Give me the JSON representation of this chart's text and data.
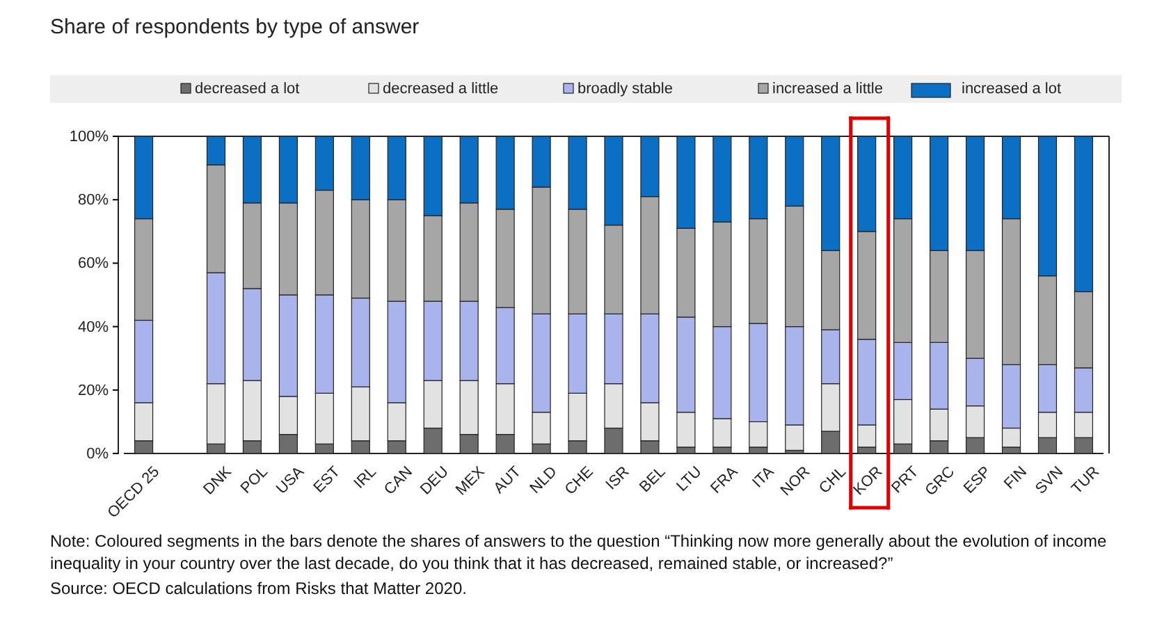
{
  "chart_data": {
    "type": "bar",
    "stacked": true,
    "title": "Share of respondents by type of answer",
    "categories": [
      "OECD 25",
      null,
      "DNK",
      "POL",
      "USA",
      "EST",
      "IRL",
      "CAN",
      "DEU",
      "MEX",
      "AUT",
      "NLD",
      "CHE",
      "ISR",
      "BEL",
      "LTU",
      "FRA",
      "ITA",
      "NOR",
      "CHL",
      "KOR",
      "PRT",
      "GRC",
      "ESP",
      "FIN",
      "SVN",
      "TUR"
    ],
    "series": [
      {
        "name": "decreased a lot",
        "color": "#6d6d6d",
        "values": [
          4,
          null,
          3,
          4,
          6,
          3,
          4,
          4,
          8,
          6,
          6,
          3,
          4,
          8,
          4,
          2,
          2,
          2,
          1,
          7,
          2,
          3,
          4,
          5,
          2,
          5,
          5
        ]
      },
      {
        "name": "decreased a little",
        "color": "#e2e2e2",
        "values": [
          12,
          null,
          19,
          19,
          12,
          16,
          17,
          12,
          15,
          17,
          16,
          10,
          15,
          14,
          12,
          11,
          9,
          8,
          8,
          15,
          7,
          14,
          10,
          10,
          6,
          8,
          8
        ]
      },
      {
        "name": "broadly stable",
        "color": "#a9b4ec",
        "values": [
          26,
          null,
          35,
          29,
          32,
          31,
          28,
          32,
          25,
          25,
          24,
          31,
          25,
          22,
          28,
          30,
          29,
          31,
          31,
          17,
          27,
          18,
          21,
          15,
          20,
          15,
          14
        ]
      },
      {
        "name": "increased a little",
        "color": "#a6a6a6",
        "values": [
          32,
          null,
          34,
          27,
          29,
          33,
          31,
          32,
          27,
          31,
          31,
          40,
          33,
          28,
          37,
          28,
          33,
          33,
          38,
          25,
          34,
          39,
          29,
          34,
          46,
          28,
          24
        ]
      },
      {
        "name": "increased a lot",
        "color": "#0b6fc4",
        "values": [
          26,
          null,
          9,
          21,
          21,
          17,
          20,
          20,
          25,
          21,
          23,
          16,
          23,
          28,
          19,
          29,
          27,
          26,
          22,
          36,
          30,
          26,
          36,
          36,
          26,
          44,
          49
        ]
      }
    ],
    "ylim": [
      0,
      100
    ],
    "yticks": [
      {
        "value": 0,
        "label": "0%"
      },
      {
        "value": 20,
        "label": "20%"
      },
      {
        "value": 40,
        "label": "40%"
      },
      {
        "value": 60,
        "label": "60%"
      },
      {
        "value": 80,
        "label": "80%"
      },
      {
        "value": 100,
        "label": "100%"
      }
    ],
    "legend": "top",
    "grid": false,
    "annotations": [
      "Note: Coloured segments in the bars denote the shares of answers to the question “Thinking now more generally about the evolution of income inequality in your country over the last decade, do you think that it has decreased, remained stable, or increased?”",
      "Source: OECD calculations from Risks that Matter 2020."
    ]
  }
}
